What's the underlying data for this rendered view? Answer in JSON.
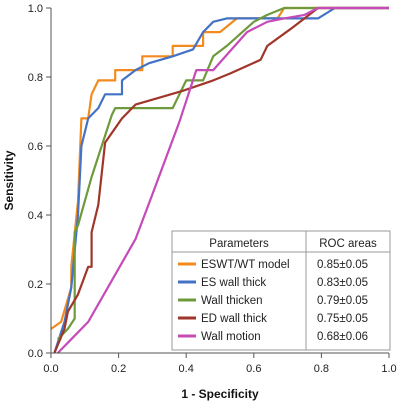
{
  "chart_data": {
    "type": "line",
    "xlabel": "1 - Specificity",
    "ylabel": "Sensitivity",
    "xlim": [
      0,
      1
    ],
    "ylim": [
      0,
      1
    ],
    "x_ticks": [
      "0.0",
      "0.2",
      "0.4",
      "0.6",
      "0.8",
      "1.0"
    ],
    "y_ticks": [
      "0.0",
      "0.2",
      "0.4",
      "0.6",
      "0.8",
      "1.0"
    ],
    "grid": false,
    "legend_position": "bottom-right",
    "legend_header": {
      "left": "Parameters",
      "right": "ROC areas"
    },
    "series": [
      {
        "name": "ESWT/WT model",
        "auc": "0.85±0.05",
        "color": "#f28a1e",
        "points": [
          [
            0,
            0.07
          ],
          [
            0.03,
            0.09
          ],
          [
            0.06,
            0.19
          ],
          [
            0.06,
            0.25
          ],
          [
            0.08,
            0.44
          ],
          [
            0.09,
            0.68
          ],
          [
            0.11,
            0.68
          ],
          [
            0.12,
            0.75
          ],
          [
            0.14,
            0.79
          ],
          [
            0.19,
            0.79
          ],
          [
            0.19,
            0.82
          ],
          [
            0.24,
            0.82
          ],
          [
            0.27,
            0.82
          ],
          [
            0.27,
            0.86
          ],
          [
            0.33,
            0.86
          ],
          [
            0.36,
            0.86
          ],
          [
            0.36,
            0.89
          ],
          [
            0.41,
            0.89
          ],
          [
            0.45,
            0.89
          ],
          [
            0.45,
            0.93
          ],
          [
            0.5,
            0.93
          ],
          [
            0.55,
            0.97
          ],
          [
            0.67,
            0.97
          ],
          [
            0.69,
            1.0
          ],
          [
            1.0,
            1.0
          ]
        ]
      },
      {
        "name": "ES wall thick",
        "auc": "0.83±0.05",
        "color": "#4472c4",
        "points": [
          [
            0.01,
            0.0
          ],
          [
            0.04,
            0.09
          ],
          [
            0.06,
            0.19
          ],
          [
            0.08,
            0.4
          ],
          [
            0.09,
            0.6
          ],
          [
            0.11,
            0.68
          ],
          [
            0.14,
            0.71
          ],
          [
            0.16,
            0.75
          ],
          [
            0.21,
            0.75
          ],
          [
            0.21,
            0.79
          ],
          [
            0.25,
            0.82
          ],
          [
            0.29,
            0.84
          ],
          [
            0.36,
            0.86
          ],
          [
            0.42,
            0.88
          ],
          [
            0.45,
            0.93
          ],
          [
            0.48,
            0.96
          ],
          [
            0.52,
            0.97
          ],
          [
            0.62,
            0.97
          ],
          [
            0.73,
            0.97
          ],
          [
            0.79,
            0.97
          ],
          [
            0.84,
            1.0
          ],
          [
            1.0,
            1.0
          ]
        ]
      },
      {
        "name": "Wall thicken",
        "auc": "0.79±0.05",
        "color": "#6e9a3c",
        "points": [
          [
            0.02,
            0.04
          ],
          [
            0.05,
            0.07
          ],
          [
            0.07,
            0.1
          ],
          [
            0.07,
            0.35
          ],
          [
            0.08,
            0.37
          ],
          [
            0.12,
            0.51
          ],
          [
            0.18,
            0.69
          ],
          [
            0.19,
            0.71
          ],
          [
            0.32,
            0.71
          ],
          [
            0.36,
            0.71
          ],
          [
            0.4,
            0.79
          ],
          [
            0.45,
            0.79
          ],
          [
            0.48,
            0.86
          ],
          [
            0.52,
            0.89
          ],
          [
            0.6,
            0.96
          ],
          [
            0.64,
            0.98
          ],
          [
            0.69,
            1.0
          ],
          [
            1.0,
            1.0
          ]
        ]
      },
      {
        "name": "ED wall thick",
        "auc": "0.75±0.05",
        "color": "#a0362a",
        "points": [
          [
            0.01,
            0.0
          ],
          [
            0.04,
            0.07
          ],
          [
            0.05,
            0.12
          ],
          [
            0.08,
            0.17
          ],
          [
            0.11,
            0.25
          ],
          [
            0.12,
            0.25
          ],
          [
            0.12,
            0.35
          ],
          [
            0.14,
            0.43
          ],
          [
            0.16,
            0.61
          ],
          [
            0.21,
            0.68
          ],
          [
            0.25,
            0.72
          ],
          [
            0.32,
            0.74
          ],
          [
            0.39,
            0.76
          ],
          [
            0.48,
            0.79
          ],
          [
            0.53,
            0.81
          ],
          [
            0.62,
            0.85
          ],
          [
            0.64,
            0.89
          ],
          [
            0.71,
            0.94
          ],
          [
            0.79,
            1.0
          ],
          [
            1.0,
            1.0
          ]
        ]
      },
      {
        "name": "Wall motion",
        "auc": "0.68±0.06",
        "color": "#c54bb8",
        "points": [
          [
            0.02,
            0.0
          ],
          [
            0.04,
            0.02
          ],
          [
            0.06,
            0.04
          ],
          [
            0.11,
            0.09
          ],
          [
            0.18,
            0.21
          ],
          [
            0.25,
            0.33
          ],
          [
            0.3,
            0.46
          ],
          [
            0.38,
            0.67
          ],
          [
            0.43,
            0.82
          ],
          [
            0.48,
            0.82
          ],
          [
            0.58,
            0.93
          ],
          [
            0.64,
            0.96
          ],
          [
            0.69,
            0.97
          ],
          [
            0.75,
            0.98
          ],
          [
            0.79,
            1.0
          ],
          [
            1.0,
            1.0
          ]
        ]
      }
    ]
  }
}
